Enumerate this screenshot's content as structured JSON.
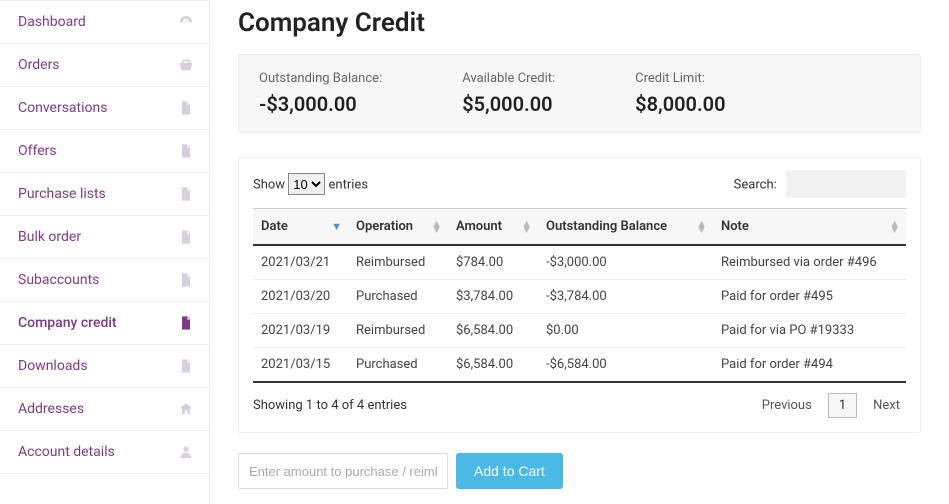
{
  "sidebar": {
    "items": [
      {
        "label": "Dashboard",
        "icon": "dashboard",
        "active": false
      },
      {
        "label": "Orders",
        "icon": "basket",
        "active": false
      },
      {
        "label": "Conversations",
        "icon": "doc",
        "active": false
      },
      {
        "label": "Offers",
        "icon": "doc",
        "active": false
      },
      {
        "label": "Purchase lists",
        "icon": "doc",
        "active": false
      },
      {
        "label": "Bulk order",
        "icon": "doc",
        "active": false
      },
      {
        "label": "Subaccounts",
        "icon": "doc",
        "active": false
      },
      {
        "label": "Company credit",
        "icon": "doc",
        "active": true
      },
      {
        "label": "Downloads",
        "icon": "doc",
        "active": false
      },
      {
        "label": "Addresses",
        "icon": "home",
        "active": false
      },
      {
        "label": "Account details",
        "icon": "user",
        "active": false
      }
    ]
  },
  "page": {
    "title": "Company Credit"
  },
  "summary": {
    "outstanding": {
      "label": "Outstanding Balance:",
      "value": "-$3,000.00"
    },
    "available": {
      "label": "Available Credit:",
      "value": "$5,000.00"
    },
    "limit": {
      "label": "Credit Limit:",
      "value": "$8,000.00"
    }
  },
  "table": {
    "show_prefix": "Show",
    "show_suffix": "entries",
    "page_size": "10",
    "search_label": "Search:",
    "columns": {
      "date": "Date",
      "operation": "Operation",
      "amount": "Amount",
      "balance": "Outstanding Balance",
      "note": "Note"
    },
    "rows": [
      {
        "date": "2021/03/21",
        "operation": "Reimbursed",
        "amount": "$784.00",
        "balance": "-$3,000.00",
        "note": "Reimbursed via order #496"
      },
      {
        "date": "2021/03/20",
        "operation": "Purchased",
        "amount": "$3,784.00",
        "balance": "-$3,784.00",
        "note": "Paid for order #495"
      },
      {
        "date": "2021/03/19",
        "operation": "Reimbursed",
        "amount": "$6,584.00",
        "balance": "$0.00",
        "note": "Paid for via PO #19333"
      },
      {
        "date": "2021/03/15",
        "operation": "Purchased",
        "amount": "$6,584.00",
        "balance": "-$6,584.00",
        "note": "Paid for order #494"
      }
    ],
    "info": "Showing 1 to 4 of 4 entries",
    "pager": {
      "prev": "Previous",
      "current": "1",
      "next": "Next"
    }
  },
  "actions": {
    "placeholder": "Enter amount to purchase / reimburse...",
    "button": "Add to Cart"
  },
  "colors": {
    "sidebar_text": "#7f3a8a",
    "sidebar_icon": "#d9cde0",
    "sidebar_icon_active": "#7f3a8a",
    "summary_bg": "#f7f7f7",
    "button_bg": "#4bb9e6",
    "sort_active": "#4a90d9"
  }
}
